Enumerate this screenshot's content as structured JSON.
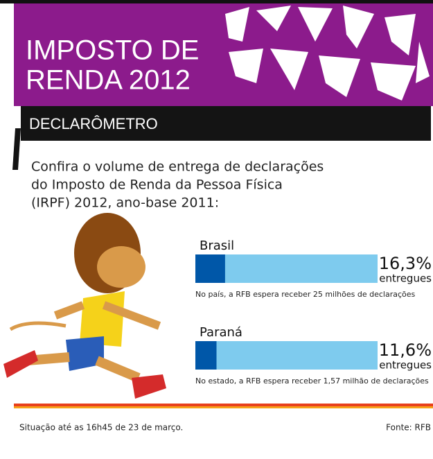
{
  "header": {
    "title_lines": [
      "IMPOSTO DE",
      "RENDA 2012"
    ],
    "section": "DECLARÔMETRO"
  },
  "intro": [
    "Confira o volume de entrega de declarações",
    "do Imposto de Renda da Pessoa Física",
    "(IRPF) 2012, ano-base 2011:"
  ],
  "chart_data": {
    "type": "progress",
    "categories": [
      "Brasil",
      "Paraná"
    ],
    "values": [
      16.3,
      11.6
    ],
    "value_labels": [
      "16,3%",
      "11,6%"
    ],
    "unit_labels": [
      "entregues",
      "entregues"
    ],
    "notes": [
      "No país, a RFB espera receber 25 milhões de declarações",
      "No estado, a RFB espera receber 1,57 milhão de declarações"
    ],
    "xlim": [
      0,
      100
    ],
    "color": "#0057a8",
    "track_color": "#7ecbee"
  },
  "footer": {
    "situation": "Situação até as 16h45 de 23 de março.",
    "source": "Fonte: RFB"
  }
}
